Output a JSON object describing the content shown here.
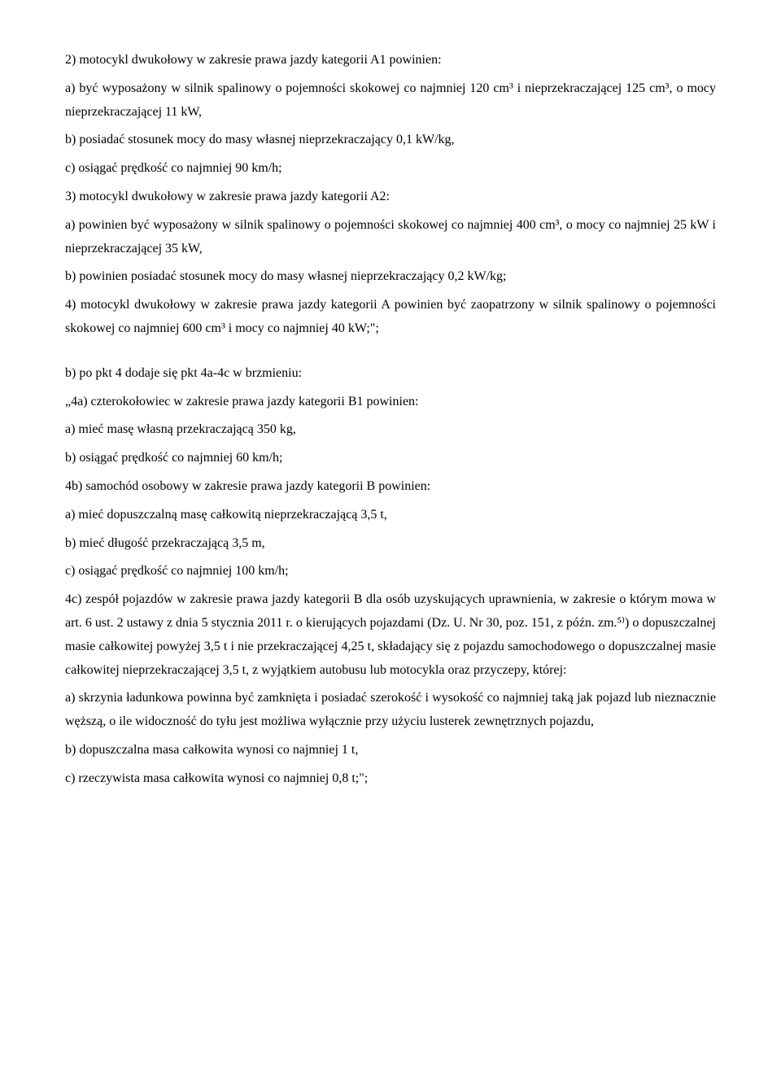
{
  "paragraphs": [
    "2) motocykl dwukołowy w zakresie prawa jazdy kategorii A1 powinien:",
    "a) być wyposażony w silnik spalinowy o pojemności skokowej co najmniej 120 cm³ i nieprzekraczającej 125 cm³, o mocy nieprzekraczającej 11 kW,",
    "b) posiadać stosunek mocy do masy własnej nieprzekraczający 0,1 kW/kg,",
    "c) osiągać prędkość co najmniej 90 km/h;",
    "3) motocykl dwukołowy w zakresie prawa jazdy kategorii A2:",
    "a) powinien być wyposażony w silnik spalinowy o pojemności skokowej co najmniej 400 cm³, o mocy co najmniej 25 kW i nieprzekraczającej 35 kW,",
    "b) powinien posiadać stosunek mocy do masy własnej nieprzekraczający 0,2 kW/kg;",
    "4) motocykl dwukołowy w zakresie prawa jazdy kategorii A powinien być zaopatrzony w silnik spalinowy o pojemności skokowej co najmniej 600 cm³ i mocy co najmniej 40 kW;\";",
    "",
    "b) po pkt 4 dodaje się pkt 4a-4c w brzmieniu:",
    "„4a) czterokołowiec w zakresie prawa jazdy kategorii B1 powinien:",
    "a) mieć masę własną przekraczającą 350 kg,",
    "b) osiągać prędkość co najmniej 60 km/h;",
    "4b) samochód osobowy w zakresie prawa jazdy kategorii B powinien:",
    "a) mieć dopuszczalną masę całkowitą nieprzekraczającą 3,5 t,",
    "b) mieć długość przekraczającą 3,5 m,",
    "c) osiągać prędkość co najmniej 100 km/h;",
    "4c) zespół pojazdów w zakresie prawa jazdy kategorii B dla osób uzyskujących uprawnienia, w zakresie o którym mowa w art. 6 ust. 2 ustawy z dnia 5 stycznia 2011 r. o kierujących pojazdami (Dz. U. Nr 30, poz. 151, z późn. zm.⁵⁾) o dopuszczalnej masie całkowitej powyżej 3,5 t i nie przekraczającej 4,25 t, składający się z pojazdu samochodowego o dopuszczalnej masie całkowitej nieprzekraczającej 3,5 t, z wyjątkiem autobusu lub motocykla oraz przyczepy, której:",
    "a) skrzynia ładunkowa powinna być zamknięta i posiadać szerokość i wysokość co najmniej taką jak pojazd lub nieznacznie węższą, o ile widoczność do tyłu jest możliwa wyłącznie przy użyciu lusterek zewnętrznych pojazdu,",
    "b) dopuszczalna masa całkowita wynosi co najmniej 1 t,",
    "c) rzeczywista masa całkowita wynosi co najmniej 0,8 t;\";"
  ]
}
